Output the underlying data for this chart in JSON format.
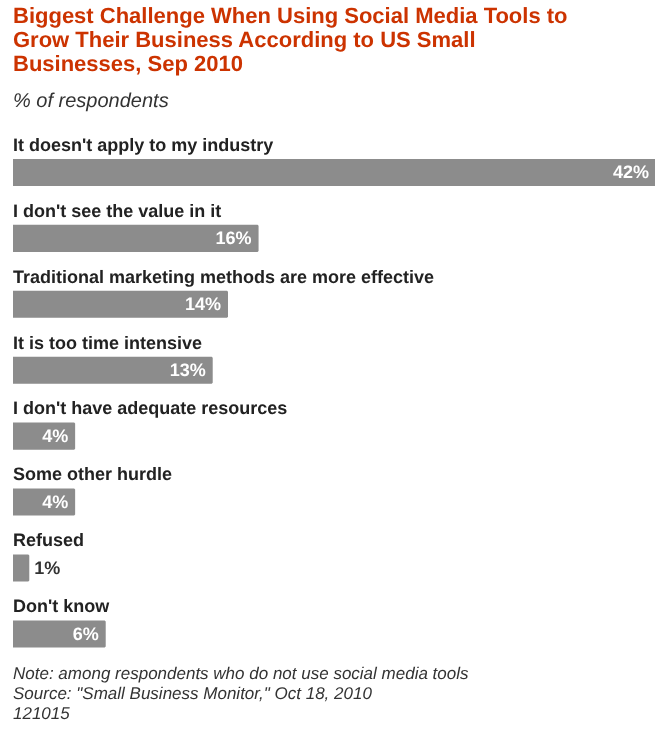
{
  "chart_data": {
    "type": "bar",
    "orientation": "horizontal",
    "title": "Biggest Challenge When Using Social Media Tools to Grow Their Business According to US Small Businesses, Sep 2010",
    "subtitle": "% of respondents",
    "categories": [
      "It doesn't apply to my industry",
      "I don't see the value in it",
      "Traditional marketing methods are more effective",
      "It is too time intensive",
      "I don't have adequate resources",
      "Some other hurdle",
      "Refused",
      "Don't know"
    ],
    "values": [
      42,
      16,
      14,
      13,
      4,
      4,
      1,
      6
    ],
    "value_labels": [
      "42%",
      "16%",
      "14%",
      "13%",
      "4%",
      "4%",
      "1%",
      "6%"
    ],
    "color": "#8c8c8c",
    "annotations": [
      "Note: among respondents who do not use social media tools",
      "Source: \"Small Business Monitor,\" Oct 18, 2010",
      "121015"
    ]
  }
}
